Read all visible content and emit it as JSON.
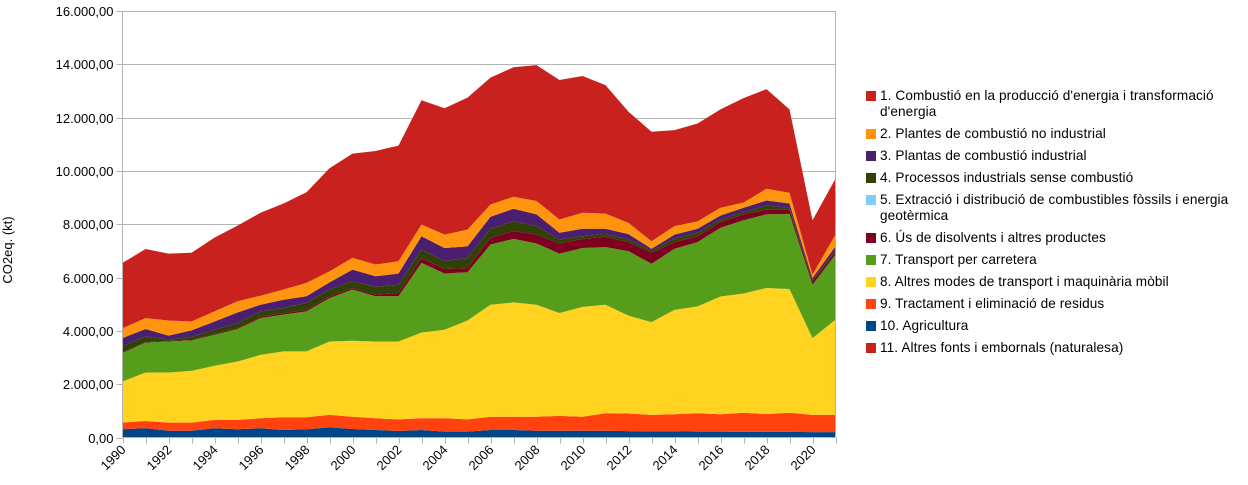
{
  "chart_data": {
    "type": "area",
    "stacked": true,
    "title": "",
    "xlabel": "",
    "ylabel": "CO2eq. (kt)",
    "ylim": [
      0,
      16000
    ],
    "yticks": [
      0,
      2000,
      4000,
      6000,
      8000,
      10000,
      12000,
      14000,
      16000
    ],
    "ytick_labels": [
      "0,00",
      "2.000,00",
      "4.000,00",
      "6.000,00",
      "8.000,00",
      "10.000,00",
      "12.000,00",
      "14.000,00",
      "16.000,00"
    ],
    "grid": "horizontal",
    "legend_position": "right",
    "x": [
      1990,
      1991,
      1992,
      1993,
      1994,
      1995,
      1996,
      1997,
      1998,
      1999,
      2000,
      2001,
      2002,
      2003,
      2004,
      2005,
      2006,
      2007,
      2008,
      2009,
      2010,
      2011,
      2012,
      2013,
      2014,
      2015,
      2016,
      2017,
      2018,
      2019,
      2020,
      2021
    ],
    "xtick_labels": [
      "1990",
      "1992",
      "1994",
      "1996",
      "1998",
      "2000",
      "2002",
      "2004",
      "2006",
      "2008",
      "2010",
      "2012",
      "2014",
      "2016",
      "2018",
      "2020"
    ],
    "stack_order_bottom_to_top": [
      9,
      8,
      7,
      6,
      5,
      4,
      3,
      2,
      1,
      0,
      10
    ],
    "series": [
      {
        "name": "1. Combustió en la producció d'energia i transformació d'energia",
        "color": "#c9211e",
        "values": [
          2450,
          2590,
          2510,
          2580,
          2770,
          2840,
          3110,
          3230,
          3400,
          3870,
          3910,
          4260,
          4340,
          4660,
          4740,
          4950,
          4760,
          4860,
          5100,
          5230,
          5130,
          4820,
          4170,
          4110,
          3600,
          3670,
          3690,
          3920,
          3740,
          3130,
          2040,
          2100
        ]
      },
      {
        "name": "2. Plantes de combustió no industrial",
        "color": "#ff950e",
        "values": [
          370,
          410,
          570,
          330,
          380,
          420,
          340,
          380,
          500,
          410,
          440,
          440,
          460,
          440,
          500,
          630,
          460,
          450,
          500,
          500,
          600,
          570,
          420,
          280,
          320,
          280,
          290,
          190,
          440,
          400,
          120,
          440
        ]
      },
      {
        "name": "3. Plantas de combustió industrial",
        "color": "#4b1f6f",
        "values": [
          290,
          280,
          150,
          250,
          310,
          400,
          250,
          310,
          250,
          270,
          440,
          400,
          420,
          500,
          500,
          430,
          450,
          470,
          440,
          250,
          280,
          190,
          200,
          70,
          160,
          150,
          150,
          170,
          190,
          160,
          70,
          150
        ]
      },
      {
        "name": "4. Processos industrials sense combustió",
        "color": "#314004",
        "values": [
          250,
          210,
          50,
          110,
          160,
          180,
          200,
          200,
          260,
          260,
          250,
          290,
          310,
          310,
          290,
          380,
          340,
          370,
          320,
          150,
          100,
          110,
          100,
          80,
          120,
          130,
          100,
          80,
          150,
          70,
          60,
          60
        ]
      },
      {
        "name": "5. Extracció i distribució de combustibles fòssils i energia geotèrmica",
        "color": "#83caff",
        "values": [
          0,
          0,
          0,
          0,
          0,
          0,
          0,
          0,
          0,
          0,
          0,
          0,
          0,
          0,
          0,
          0,
          0,
          0,
          0,
          0,
          0,
          0,
          0,
          0,
          0,
          0,
          0,
          0,
          0,
          0,
          0,
          0
        ]
      },
      {
        "name": "6. Ús de disolvents i altres productes",
        "color": "#7e0021",
        "values": [
          20,
          20,
          20,
          20,
          30,
          40,
          50,
          50,
          60,
          60,
          60,
          60,
          120,
          190,
          170,
          160,
          250,
          290,
          330,
          380,
          340,
          390,
          340,
          410,
          250,
          220,
          210,
          220,
          180,
          160,
          130,
          100
        ]
      },
      {
        "name": "7. Transport per carretera",
        "color": "#579d1c",
        "values": [
          1070,
          1120,
          1160,
          1140,
          1160,
          1220,
          1380,
          1380,
          1500,
          1630,
          1920,
          1700,
          1700,
          2610,
          2110,
          1810,
          2260,
          2380,
          2300,
          2230,
          2210,
          2160,
          2420,
          2190,
          2290,
          2410,
          2580,
          2750,
          2760,
          2820,
          2000,
          2440
        ]
      },
      {
        "name": "8. Altres modes de transport i maquinària mòbil",
        "color": "#ffd320",
        "values": [
          1540,
          1820,
          1880,
          1940,
          2030,
          2190,
          2380,
          2470,
          2470,
          2750,
          2850,
          2880,
          2920,
          3220,
          3320,
          3710,
          4200,
          4290,
          4200,
          3860,
          4120,
          4070,
          3670,
          3480,
          3920,
          4010,
          4420,
          4470,
          4730,
          4640,
          2880,
          3570
        ]
      },
      {
        "name": "9. Tractament i eliminació de residus",
        "color": "#ff420e",
        "values": [
          250,
          275,
          305,
          305,
          315,
          350,
          375,
          480,
          450,
          470,
          460,
          440,
          435,
          440,
          500,
          460,
          500,
          500,
          525,
          555,
          525,
          655,
          660,
          620,
          640,
          690,
          650,
          720,
          670,
          720,
          650,
          650
        ]
      },
      {
        "name": "10. Agricultura",
        "color": "#004586",
        "values": [
          310,
          345,
          255,
          255,
          345,
          310,
          345,
          280,
          310,
          380,
          320,
          280,
          245,
          280,
          220,
          220,
          280,
          280,
          255,
          255,
          255,
          255,
          240,
          230,
          230,
          220,
          220,
          210,
          210,
          210,
          200,
          200
        ]
      },
      {
        "name": "11. Altres fonts i embornals (naturalesa)",
        "color": "#c9211e",
        "values": [
          0,
          0,
          0,
          0,
          0,
          0,
          0,
          0,
          0,
          0,
          0,
          0,
          0,
          0,
          0,
          0,
          0,
          0,
          0,
          0,
          0,
          0,
          0,
          0,
          0,
          0,
          0,
          0,
          0,
          0,
          0,
          0
        ]
      }
    ]
  },
  "legend": {
    "items": [
      {
        "label": "1. Combustió en la producció d'energia i transformació d'energia"
      },
      {
        "label": "2. Plantes de combustió no industrial"
      },
      {
        "label": "3. Plantas de combustió industrial"
      },
      {
        "label": "4. Processos industrials sense combustió"
      },
      {
        "label": "5. Extracció i distribució de combustibles fòssils i energia geotèrmica"
      },
      {
        "label": "6. Ús de disolvents i altres productes"
      },
      {
        "label": "7. Transport per carretera"
      },
      {
        "label": "8. Altres modes de transport i maquinària mòbil"
      },
      {
        "label": "9. Tractament i eliminació de residus"
      },
      {
        "label": "10. Agricultura"
      },
      {
        "label": "11. Altres fonts i embornals (naturalesa)"
      }
    ]
  }
}
